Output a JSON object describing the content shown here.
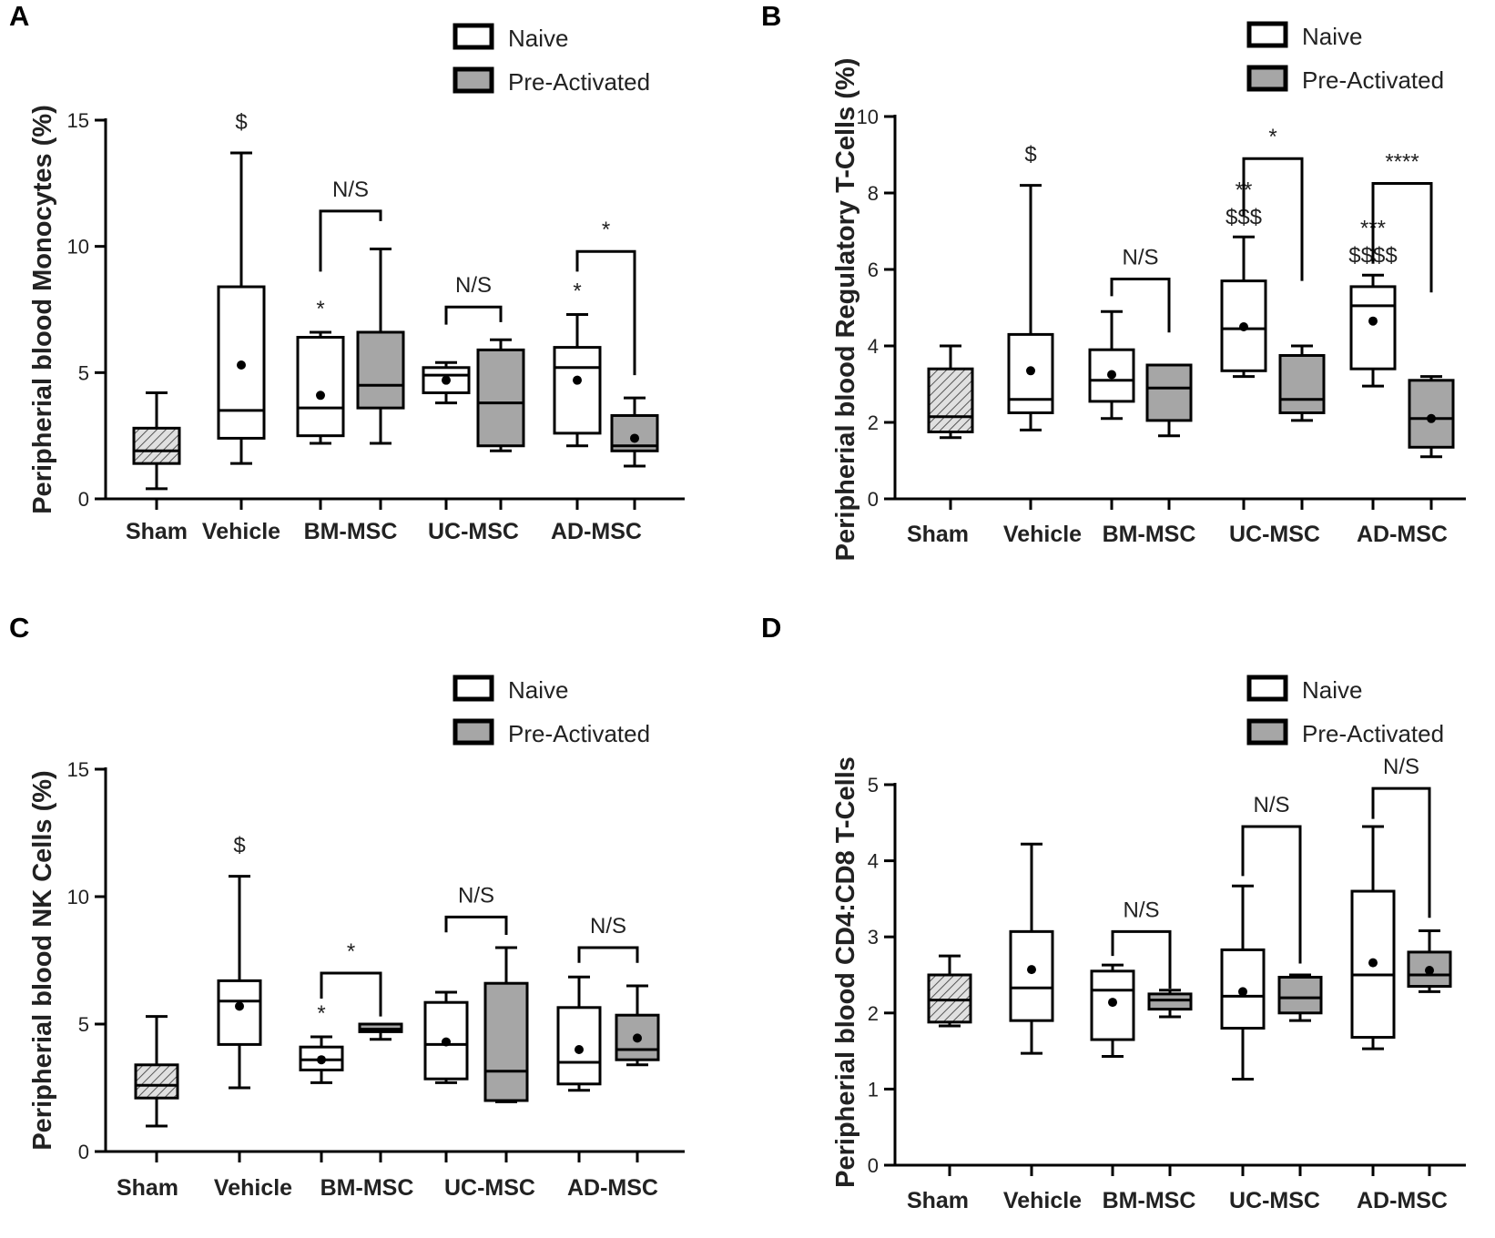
{
  "colors": {
    "naive": "#ffffff",
    "preactivated": "#a6a6a6",
    "sham": "#d0d0d0",
    "ink": "#000000"
  },
  "legend": {
    "naive": "Naive",
    "preactivated": "Pre-Activated"
  },
  "chart_data": [
    {
      "panel": "A",
      "type": "box",
      "ylabel": "Peripherial blood Monocytes (%)",
      "ylim": [
        0,
        15
      ],
      "yticks": [
        0,
        5,
        10,
        15
      ],
      "categories": [
        "Sham",
        "Vehicle",
        "BM-MSC",
        "UC-MSC",
        "AD-MSC"
      ],
      "boxes": [
        {
          "group": "Sham",
          "kind": "sham",
          "min": 0.4,
          "q1": 1.4,
          "median": 1.9,
          "q3": 2.8,
          "max": 4.2
        },
        {
          "group": "Vehicle",
          "kind": "naive",
          "min": 1.4,
          "q1": 2.4,
          "median": 3.5,
          "q3": 8.4,
          "max": 13.7,
          "mean": 5.3,
          "above": "$"
        },
        {
          "group": "BM-MSC",
          "kind": "naive",
          "min": 2.2,
          "q1": 2.5,
          "median": 3.6,
          "q3": 6.4,
          "max": 6.6,
          "mean": 4.1,
          "above": "*"
        },
        {
          "group": "BM-MSC",
          "kind": "preactivated",
          "min": 2.2,
          "q1": 3.6,
          "median": 4.5,
          "q3": 6.6,
          "max": 9.9
        },
        {
          "group": "UC-MSC",
          "kind": "naive",
          "min": 3.8,
          "q1": 4.2,
          "median": 4.9,
          "q3": 5.2,
          "max": 5.4,
          "mean": 4.7
        },
        {
          "group": "UC-MSC",
          "kind": "preactivated",
          "min": 1.9,
          "q1": 2.1,
          "median": 3.8,
          "q3": 5.9,
          "max": 6.3
        },
        {
          "group": "AD-MSC",
          "kind": "naive",
          "min": 2.1,
          "q1": 2.6,
          "median": 5.2,
          "q3": 6.0,
          "max": 7.3,
          "mean": 4.7,
          "above": "*"
        },
        {
          "group": "AD-MSC",
          "kind": "preactivated",
          "min": 1.3,
          "q1": 1.9,
          "median": 2.1,
          "q3": 3.3,
          "max": 4.0,
          "mean": 2.4
        }
      ],
      "brackets": [
        {
          "group": "BM-MSC",
          "label": "N/S",
          "top": 11.4,
          "left_end": 9.0,
          "right_end": 11.0
        },
        {
          "group": "UC-MSC",
          "label": "N/S",
          "top": 7.6,
          "left_end": 6.9,
          "right_end": 7.0
        },
        {
          "group": "AD-MSC",
          "label": "*",
          "top": 9.8,
          "left_end": 9.0,
          "right_end": 4.9
        }
      ]
    },
    {
      "panel": "B",
      "type": "box",
      "ylabel": "Peripherial blood Regulatory T-Cells (%)",
      "ylim": [
        0,
        10
      ],
      "yticks": [
        0,
        2,
        4,
        6,
        8,
        10
      ],
      "categories": [
        "Sham",
        "Vehicle",
        "BM-MSC",
        "UC-MSC",
        "AD-MSC"
      ],
      "boxes": [
        {
          "group": "Sham",
          "kind": "sham",
          "min": 1.6,
          "q1": 1.75,
          "median": 2.15,
          "q3": 3.4,
          "max": 4.0
        },
        {
          "group": "Vehicle",
          "kind": "naive",
          "min": 1.8,
          "q1": 2.25,
          "median": 2.6,
          "q3": 4.3,
          "max": 8.2,
          "mean": 3.35,
          "above": "$"
        },
        {
          "group": "BM-MSC",
          "kind": "naive",
          "min": 2.1,
          "q1": 2.55,
          "median": 3.1,
          "q3": 3.9,
          "max": 4.9,
          "mean": 3.25
        },
        {
          "group": "BM-MSC",
          "kind": "preactivated",
          "min": 1.65,
          "q1": 2.05,
          "median": 2.9,
          "q3": 3.5,
          "max": 3.5
        },
        {
          "group": "UC-MSC",
          "kind": "naive",
          "min": 3.2,
          "q1": 3.35,
          "median": 4.45,
          "q3": 5.7,
          "max": 6.85,
          "mean": 4.5,
          "above": "**",
          "above2": "$$$"
        },
        {
          "group": "UC-MSC",
          "kind": "preactivated",
          "min": 2.05,
          "q1": 2.25,
          "median": 2.6,
          "q3": 3.75,
          "max": 4.0
        },
        {
          "group": "AD-MSC",
          "kind": "naive",
          "min": 2.95,
          "q1": 3.4,
          "median": 5.05,
          "q3": 5.55,
          "max": 5.85,
          "mean": 4.65,
          "above": "***",
          "above2": "$$$$"
        },
        {
          "group": "AD-MSC",
          "kind": "preactivated",
          "min": 1.1,
          "q1": 1.35,
          "median": 2.1,
          "q3": 3.1,
          "max": 3.2,
          "mean": 2.1
        }
      ],
      "brackets": [
        {
          "group": "BM-MSC",
          "label": "N/S",
          "top": 5.75,
          "left_end": 5.3,
          "right_end": 4.35
        },
        {
          "group": "UC-MSC",
          "label": "*",
          "top": 8.9,
          "left_end": 7.4,
          "right_end": 5.7
        },
        {
          "group": "AD-MSC",
          "label": "****",
          "top": 8.25,
          "left_end": 6.15,
          "right_end": 5.4
        }
      ]
    },
    {
      "panel": "C",
      "type": "box",
      "ylabel": "Peripherial blood NK Cells (%)",
      "ylim": [
        0,
        15
      ],
      "yticks": [
        0,
        5,
        10,
        15
      ],
      "categories": [
        "Sham",
        "Vehicle",
        "BM-MSC",
        "UC-MSC",
        "AD-MSC"
      ],
      "boxes": [
        {
          "group": "Sham",
          "kind": "sham",
          "min": 1.0,
          "q1": 2.1,
          "median": 2.6,
          "q3": 3.4,
          "max": 5.3
        },
        {
          "group": "Vehicle",
          "kind": "naive",
          "min": 2.5,
          "q1": 4.2,
          "median": 5.9,
          "q3": 6.7,
          "max": 10.8,
          "mean": 5.7,
          "above": "$"
        },
        {
          "group": "BM-MSC",
          "kind": "naive",
          "min": 2.7,
          "q1": 3.2,
          "median": 3.6,
          "q3": 4.1,
          "max": 4.5,
          "mean": 3.6,
          "above": "*"
        },
        {
          "group": "BM-MSC",
          "kind": "preactivated",
          "min": 4.4,
          "q1": 4.7,
          "median": 4.8,
          "q3": 5.0,
          "max": 5.0
        },
        {
          "group": "UC-MSC",
          "kind": "naive",
          "min": 2.7,
          "q1": 2.85,
          "median": 4.2,
          "q3": 5.85,
          "max": 6.25,
          "mean": 4.3
        },
        {
          "group": "UC-MSC",
          "kind": "preactivated",
          "min": 1.95,
          "q1": 2.0,
          "median": 3.15,
          "q3": 6.6,
          "max": 8.0
        },
        {
          "group": "AD-MSC",
          "kind": "naive",
          "min": 2.4,
          "q1": 2.65,
          "median": 3.5,
          "q3": 5.65,
          "max": 6.85,
          "mean": 4.0
        },
        {
          "group": "AD-MSC",
          "kind": "preactivated",
          "min": 3.4,
          "q1": 3.6,
          "median": 4.0,
          "q3": 5.35,
          "max": 6.5,
          "mean": 4.45
        }
      ],
      "brackets": [
        {
          "group": "BM-MSC",
          "label": "*",
          "top": 7.0,
          "left_end": 6.0,
          "right_end": 5.3
        },
        {
          "group": "UC-MSC",
          "label": "N/S",
          "top": 9.2,
          "left_end": 8.6,
          "right_end": 8.5
        },
        {
          "group": "AD-MSC",
          "label": "N/S",
          "top": 8.0,
          "left_end": 7.4,
          "right_end": 7.4
        }
      ]
    },
    {
      "panel": "D",
      "type": "box",
      "ylabel": "Peripherial blood CD4:CD8 T-Cells",
      "ylim": [
        0,
        5
      ],
      "yticks": [
        0,
        1,
        2,
        3,
        4,
        5
      ],
      "categories": [
        "Sham",
        "Vehicle",
        "BM-MSC",
        "UC-MSC",
        "AD-MSC"
      ],
      "boxes": [
        {
          "group": "Sham",
          "kind": "sham",
          "min": 1.83,
          "q1": 1.88,
          "median": 2.17,
          "q3": 2.5,
          "max": 2.75
        },
        {
          "group": "Vehicle",
          "kind": "naive",
          "min": 1.47,
          "q1": 1.9,
          "median": 2.33,
          "q3": 3.07,
          "max": 4.22,
          "mean": 2.57
        },
        {
          "group": "BM-MSC",
          "kind": "naive",
          "min": 1.43,
          "q1": 1.65,
          "median": 2.3,
          "q3": 2.55,
          "max": 2.63,
          "mean": 2.14
        },
        {
          "group": "BM-MSC",
          "kind": "preactivated",
          "min": 1.95,
          "q1": 2.05,
          "median": 2.17,
          "q3": 2.25,
          "max": 2.3
        },
        {
          "group": "UC-MSC",
          "kind": "naive",
          "min": 1.13,
          "q1": 1.8,
          "median": 2.22,
          "q3": 2.83,
          "max": 3.67,
          "mean": 2.28
        },
        {
          "group": "UC-MSC",
          "kind": "preactivated",
          "min": 1.9,
          "q1": 2.0,
          "median": 2.2,
          "q3": 2.47,
          "max": 2.5
        },
        {
          "group": "AD-MSC",
          "kind": "naive",
          "min": 1.53,
          "q1": 1.68,
          "median": 2.5,
          "q3": 3.6,
          "max": 4.45,
          "mean": 2.66
        },
        {
          "group": "AD-MSC",
          "kind": "preactivated",
          "min": 2.28,
          "q1": 2.35,
          "median": 2.5,
          "q3": 2.8,
          "max": 3.08,
          "mean": 2.56
        }
      ],
      "brackets": [
        {
          "group": "BM-MSC",
          "label": "N/S",
          "top": 3.07,
          "left_end": 2.75,
          "right_end": 2.32
        },
        {
          "group": "UC-MSC",
          "label": "N/S",
          "top": 4.45,
          "left_end": 3.8,
          "right_end": 2.65
        },
        {
          "group": "AD-MSC",
          "label": "N/S",
          "top": 4.95,
          "left_end": 4.55,
          "right_end": 3.25
        }
      ]
    }
  ]
}
